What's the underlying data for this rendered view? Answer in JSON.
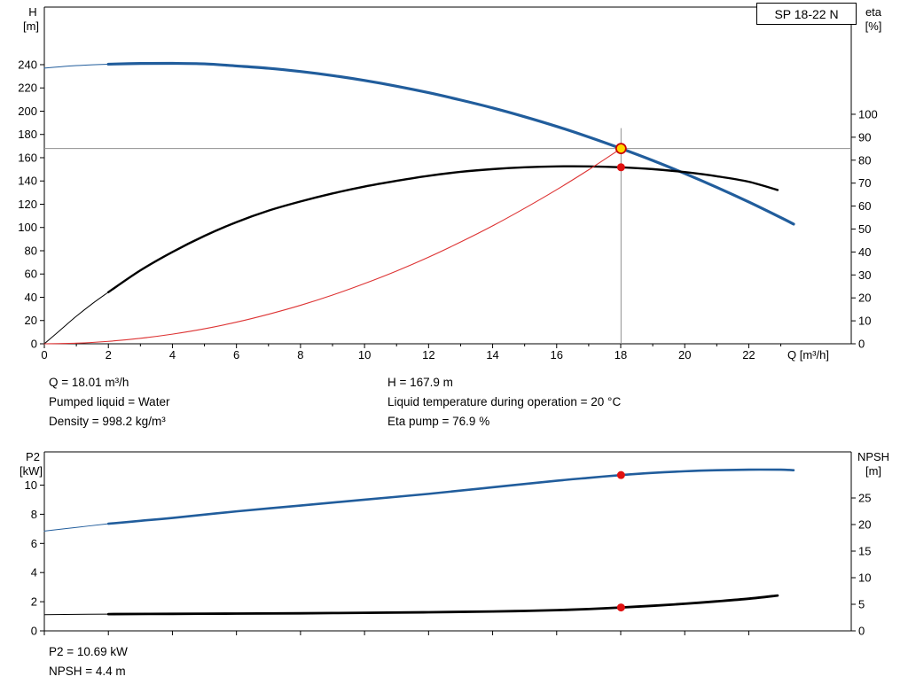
{
  "pump_label": "SP 18-22 N",
  "colors": {
    "curve_blue": "#215d9c",
    "curve_black": "#000000",
    "curve_red": "#dd3333",
    "marker_red": "#e01111",
    "marker_yellow": "#ffd800",
    "marker_ring": "#c80000",
    "crosshair_gray": "#909090"
  },
  "info_top": {
    "q": "Q = 18.01 m³/h",
    "h": "H = 167.9 m",
    "liquid": "Pumped liquid = Water",
    "temp": "Liquid temperature during operation = 20 °C",
    "density": "Density = 998.2 kg/m³",
    "eta": "Eta pump = 76.9 %"
  },
  "info_bottom": {
    "p2": "P2 = 10.69 kW",
    "npsh": "NPSH = 4.4 m"
  },
  "chart_data": [
    {
      "id": "top",
      "type": "line",
      "title": "SP 18-22 N",
      "x_axis": {
        "label": "Q [m³/h]",
        "ticks": [
          0,
          2,
          4,
          6,
          8,
          10,
          12,
          14,
          16,
          18,
          20,
          22
        ],
        "range": [
          0,
          25.2
        ]
      },
      "left_axis": {
        "title": "H",
        "unit": "[m]",
        "ticks": [
          0,
          20,
          40,
          60,
          80,
          100,
          120,
          140,
          160,
          180,
          200,
          220,
          240
        ],
        "range": [
          0,
          289.5
        ]
      },
      "right_axis": {
        "title": "eta",
        "unit": "[%]",
        "ticks": [
          0,
          10,
          20,
          30,
          40,
          50,
          60,
          70,
          80,
          90,
          100
        ],
        "range": [
          0,
          146.7
        ]
      },
      "crosshair": {
        "q": 18.01,
        "h": 167.9
      },
      "series": [
        {
          "name": "head-curve",
          "axis": "left",
          "color": "#215d9c",
          "width": 3.2,
          "thin_until": 2,
          "points": {
            "q": [
              0,
              0.5,
              1,
              1.5,
              2,
              3,
              4,
              5,
              6,
              7,
              8,
              9,
              10,
              11,
              12,
              13,
              14,
              15,
              16,
              17,
              18.01,
              19,
              20,
              21,
              22,
              23,
              23.4
            ],
            "v": [
              237,
              238.2,
              239.2,
              239.9,
              240.4,
              241,
              241.1,
              240.7,
              238.9,
              236.9,
              234.1,
              230.6,
              226.4,
              221.5,
              215.9,
              209.6,
              202.8,
              195.2,
              186.9,
              177.8,
              167.9,
              157.6,
              146.4,
              134.5,
              121.9,
              108.5,
              102.9
            ]
          }
        },
        {
          "name": "efficiency-curve",
          "axis": "right",
          "color": "#000000",
          "width": 2.4,
          "thin_until": 2,
          "points": {
            "q": [
              0,
              0.5,
              1,
              1.5,
              2,
              3,
              4,
              5,
              6,
              7,
              8,
              9,
              10,
              11,
              12,
              13,
              14,
              15,
              16,
              17,
              18.01,
              19,
              20,
              21,
              22,
              22.9
            ],
            "v": [
              0,
              6,
              12,
              17.5,
              22.5,
              32,
              40,
              47,
              53,
              58,
              62,
              65.5,
              68.5,
              71,
              73.2,
              74.9,
              76.1,
              76.9,
              77.3,
              77.3,
              76.9,
              76.1,
              74.8,
              73,
              70.6,
              67
            ]
          }
        },
        {
          "name": "system-curve",
          "axis": "left",
          "color": "#dd3333",
          "width": 1.1,
          "points": {
            "q": [
              0,
              1,
              2,
              3,
              4,
              5,
              6,
              7,
              8,
              9,
              10,
              11,
              12,
              13,
              14,
              15,
              16,
              17,
              18.01
            ],
            "v": [
              0,
              0.5,
              2.1,
              4.7,
              8.3,
              12.9,
              18.6,
              25.4,
              33.1,
              41.9,
              51.8,
              62.6,
              74.5,
              87.5,
              101.4,
              116.5,
              132.5,
              149.6,
              167.9
            ]
          }
        }
      ],
      "markers": [
        {
          "name": "duty-point",
          "q": 18.01,
          "v": 167.9,
          "axis": "left",
          "r": 5.5,
          "fill": "#ffd800",
          "stroke": "#c80000",
          "stroke_width": 1.8
        },
        {
          "name": "eta-point",
          "q": 18.01,
          "v": 76.9,
          "axis": "right",
          "r": 4.5,
          "fill": "#e01111"
        }
      ]
    },
    {
      "id": "bottom",
      "type": "line",
      "title": "",
      "x_axis": {
        "label": "",
        "ticks": [
          0,
          2,
          4,
          6,
          8,
          10,
          12,
          14,
          16,
          18,
          20,
          22
        ],
        "range": [
          0,
          25.2
        ]
      },
      "left_axis": {
        "title": "P2",
        "unit": "[kW]",
        "ticks": [
          0,
          2,
          4,
          6,
          8,
          10
        ],
        "range": [
          0,
          12.28
        ]
      },
      "right_axis": {
        "title": "NPSH",
        "unit": "[m]",
        "ticks": [
          0,
          5,
          10,
          15,
          20,
          25
        ],
        "range": [
          0,
          33.67
        ]
      },
      "series": [
        {
          "name": "power-curve",
          "axis": "left",
          "color": "#215d9c",
          "width": 2.6,
          "thin_until": 2,
          "points": {
            "q": [
              0,
              1,
              2,
              3,
              4,
              6,
              8,
              10,
              12,
              14,
              16,
              17,
              18.01,
              19,
              20,
              21,
              22,
              23,
              23.4
            ],
            "v": [
              6.85,
              7.1,
              7.35,
              7.55,
              7.75,
              8.2,
              8.6,
              9,
              9.4,
              9.85,
              10.3,
              10.5,
              10.69,
              10.84,
              10.95,
              11.02,
              11.06,
              11.06,
              11.02
            ]
          }
        },
        {
          "name": "npsh-curve",
          "axis": "right",
          "color": "#000000",
          "width": 2.8,
          "thin_until": 2,
          "points": {
            "q": [
              0,
              1,
              2,
              4,
              6,
              8,
              10,
              12,
              14,
              15,
              16,
              17,
              18.01,
              19,
              20,
              21,
              22,
              22.9
            ],
            "v": [
              3.05,
              3.1,
              3.15,
              3.2,
              3.25,
              3.3,
              3.4,
              3.5,
              3.65,
              3.75,
              3.9,
              4.1,
              4.4,
              4.72,
              5.1,
              5.55,
              6.05,
              6.65
            ]
          }
        }
      ],
      "markers": [
        {
          "name": "power-point",
          "q": 18.01,
          "v": 10.69,
          "axis": "left",
          "r": 4.5,
          "fill": "#e01111"
        },
        {
          "name": "npsh-point",
          "q": 18.01,
          "v": 4.4,
          "axis": "right",
          "r": 4.5,
          "fill": "#e01111"
        }
      ]
    }
  ]
}
